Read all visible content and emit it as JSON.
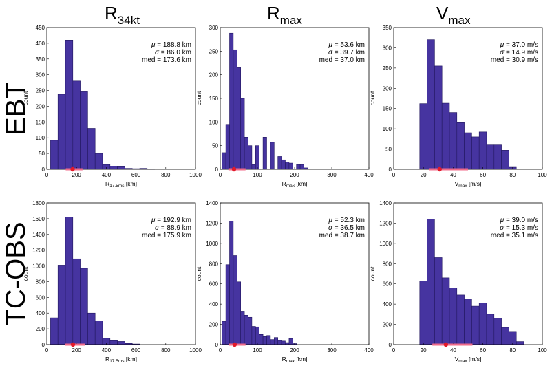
{
  "figure": {
    "column_titles": [
      {
        "main": "R",
        "sub": "34kt"
      },
      {
        "main": "R",
        "sub": "max"
      },
      {
        "main": "V",
        "sub": "max"
      }
    ],
    "row_titles": [
      "EBT",
      "TC-OBS"
    ],
    "colors": {
      "bar": "#4634a0",
      "bar_edge": "#21175e",
      "range": "#f06a8a",
      "median_dot": "#e31a2a"
    }
  },
  "chart_data": [
    {
      "id": "ebt-r34",
      "type": "bar",
      "row": 0,
      "col": 0,
      "title": "R34kt (EBT)",
      "xlabel": {
        "main": "R",
        "sub": "17.5ms",
        "unit": " [km]"
      },
      "ylabel": "count",
      "xlim": [
        0,
        1000
      ],
      "ylim": [
        0,
        450
      ],
      "xticks": [
        0,
        200,
        400,
        600,
        800,
        1000
      ],
      "yticks": [
        0,
        50,
        100,
        150,
        200,
        250,
        300,
        350,
        400,
        450
      ],
      "bin_width": 50,
      "bin_start": [
        25,
        75,
        125,
        175,
        225,
        275,
        325,
        375,
        425,
        475,
        525,
        575,
        625,
        675
      ],
      "values": [
        92,
        238,
        410,
        280,
        246,
        130,
        50,
        15,
        10,
        8,
        3,
        2,
        3,
        1
      ],
      "stats": {
        "mu": "188.8 km",
        "sigma": "86.0 km",
        "med": "173.6 km"
      },
      "median": 173.6,
      "range": [
        127,
        240
      ]
    },
    {
      "id": "ebt-rmax",
      "type": "bar",
      "row": 0,
      "col": 1,
      "title": "Rmax (EBT)",
      "xlabel": {
        "main": "R",
        "sub": "max",
        "unit": " [km]"
      },
      "ylabel": "count",
      "xlim": [
        0,
        400
      ],
      "ylim": [
        0,
        300
      ],
      "xticks": [
        0,
        100,
        200,
        300,
        400
      ],
      "yticks": [
        0,
        50,
        100,
        150,
        200,
        250,
        300
      ],
      "bin_width": 10,
      "bin_start": [
        5,
        15,
        25,
        35,
        45,
        55,
        65,
        75,
        85,
        95,
        105,
        115,
        125,
        135,
        145,
        155,
        165,
        175,
        185,
        195,
        205,
        215,
        225
      ],
      "values": [
        35,
        95,
        288,
        253,
        215,
        150,
        68,
        50,
        10,
        50,
        0,
        68,
        0,
        57,
        0,
        27,
        20,
        15,
        13,
        0,
        10,
        10,
        3
      ],
      "stats": {
        "mu": "53.6 km",
        "sigma": "39.7 km",
        "med": "37.0 km"
      },
      "median": 37.0,
      "range": [
        22,
        68
      ]
    },
    {
      "id": "ebt-vmax",
      "type": "bar",
      "row": 0,
      "col": 2,
      "title": "Vmax (EBT)",
      "xlabel": {
        "main": "V",
        "sub": "max",
        "unit": " [m/s]"
      },
      "ylabel": "count",
      "xlim": [
        0,
        100
      ],
      "ylim": [
        0,
        350
      ],
      "xticks": [
        0,
        20,
        40,
        60,
        80,
        100
      ],
      "yticks": [
        0,
        50,
        100,
        150,
        200,
        250,
        300,
        350
      ],
      "bin_width": 5,
      "bin_start": [
        17.5,
        22.5,
        27.5,
        32.5,
        37.5,
        42.5,
        47.5,
        52.5,
        57.5,
        62.5,
        67.5,
        72.5,
        77.5
      ],
      "values": [
        162,
        320,
        255,
        163,
        140,
        115,
        90,
        80,
        92,
        60,
        60,
        47,
        5
      ],
      "stats": {
        "mu": "37.0 m/s",
        "sigma": "14.9 m/s",
        "med": "30.9 m/s"
      },
      "median": 30.9,
      "range": [
        24,
        50
      ]
    },
    {
      "id": "tcobs-r34",
      "type": "bar",
      "row": 1,
      "col": 0,
      "title": "R34kt (TC-OBS)",
      "xlabel": {
        "main": "R",
        "sub": "17.5ms",
        "unit": " [km]"
      },
      "ylabel": "count",
      "xlim": [
        0,
        1000
      ],
      "ylim": [
        0,
        1800
      ],
      "xticks": [
        0,
        200,
        400,
        600,
        800,
        1000
      ],
      "yticks": [
        0,
        200,
        400,
        600,
        800,
        1000,
        1200,
        1400,
        1600,
        1800
      ],
      "bin_width": 50,
      "bin_start": [
        25,
        75,
        125,
        175,
        225,
        275,
        325,
        375,
        425,
        475,
        525,
        575
      ],
      "values": [
        340,
        1010,
        1620,
        1090,
        970,
        400,
        300,
        80,
        50,
        40,
        15,
        8
      ],
      "stats": {
        "mu": "192.9 km",
        "sigma": "88.9 km",
        "med": "175.9 km"
      },
      "median": 175.9,
      "range": [
        125,
        255
      ]
    },
    {
      "id": "tcobs-rmax",
      "type": "bar",
      "row": 1,
      "col": 1,
      "title": "Rmax (TC-OBS)",
      "xlabel": {
        "main": "R",
        "sub": "max",
        "unit": " [km]"
      },
      "ylabel": "count",
      "xlim": [
        0,
        400
      ],
      "ylim": [
        0,
        1400
      ],
      "xticks": [
        0,
        100,
        200,
        300,
        400
      ],
      "yticks": [
        0,
        200,
        400,
        600,
        800,
        1000,
        1200,
        1400
      ],
      "bin_width": 10,
      "bin_start": [
        5,
        15,
        25,
        35,
        45,
        55,
        65,
        75,
        85,
        95,
        105,
        115,
        125,
        135,
        145,
        155,
        165,
        175,
        185,
        195
      ],
      "values": [
        230,
        790,
        1220,
        880,
        620,
        330,
        290,
        270,
        180,
        175,
        100,
        80,
        90,
        50,
        70,
        40,
        35,
        20,
        60,
        10
      ],
      "stats": {
        "mu": "52.3 km",
        "sigma": "36.5 km",
        "med": "38.7 km"
      },
      "median": 38.7,
      "range": [
        24,
        68
      ]
    },
    {
      "id": "tcobs-vmax",
      "type": "bar",
      "row": 1,
      "col": 2,
      "title": "Vmax (TC-OBS)",
      "xlabel": {
        "main": "V",
        "sub": "max",
        "unit": " [m/s]"
      },
      "ylabel": "count",
      "xlim": [
        0,
        100
      ],
      "ylim": [
        0,
        1400
      ],
      "xticks": [
        0,
        20,
        40,
        60,
        80,
        100
      ],
      "yticks": [
        0,
        200,
        400,
        600,
        800,
        1000,
        1200,
        1400
      ],
      "bin_width": 5,
      "bin_start": [
        17.5,
        22.5,
        27.5,
        32.5,
        37.5,
        42.5,
        47.5,
        52.5,
        57.5,
        62.5,
        67.5,
        72.5,
        77.5,
        82.5
      ],
      "values": [
        630,
        1240,
        860,
        660,
        560,
        490,
        450,
        380,
        410,
        300,
        260,
        170,
        130,
        30
      ],
      "stats": {
        "mu": "39.0 m/s",
        "sigma": "15.3 m/s",
        "med": "35.1 m/s"
      },
      "median": 35.1,
      "range": [
        26,
        53
      ]
    }
  ]
}
